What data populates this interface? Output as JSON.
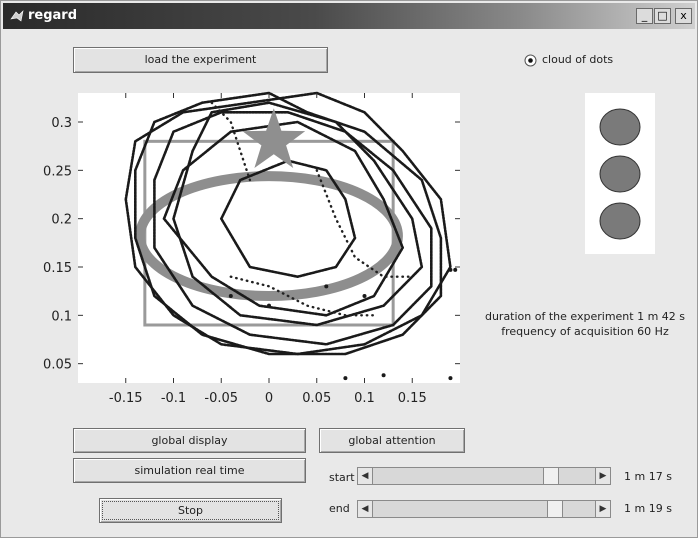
{
  "window": {
    "title": "regard",
    "controls": [
      "_",
      "□",
      "x"
    ]
  },
  "buttons": {
    "load": "load the experiment",
    "global_display": "global display",
    "simulation": "simulation real time",
    "stop": "Stop",
    "global_attention": "global attention"
  },
  "radio": {
    "label": "cloud of dots",
    "selected": true
  },
  "info": {
    "duration": "duration of the experiment 1 m 42 s",
    "frequency": "frequency of acquisition 60 Hz"
  },
  "sliders": {
    "start": {
      "label": "start",
      "value_text": "1 m 17 s",
      "position": 0.82
    },
    "end": {
      "label": "end",
      "value_text": "1 m 19 s",
      "position": 0.84
    }
  },
  "chart_data": {
    "type": "scatter",
    "title": "",
    "xlabel": "",
    "ylabel": "",
    "xlim": [
      -0.2,
      0.2
    ],
    "ylim": [
      0.03,
      0.33
    ],
    "xticks": [
      "-0.15",
      "-0.1",
      "-0.05",
      "0",
      "0.05",
      "0.1",
      "0.15"
    ],
    "xtick_values": [
      -0.15,
      -0.1,
      -0.05,
      0,
      0.05,
      0.1,
      0.15
    ],
    "yticks": [
      "0.05",
      "0.1",
      "0.15",
      "0.2",
      "0.25",
      "0.3"
    ],
    "ytick_values": [
      0.05,
      0.1,
      0.15,
      0.2,
      0.25,
      0.3
    ],
    "rectangle": {
      "x0": -0.13,
      "x1": 0.13,
      "y0": 0.09,
      "y1": 0.28
    },
    "ellipse": {
      "cx": 0.0,
      "cy": 0.182,
      "rx": 0.135,
      "ry": 0.062
    },
    "star": {
      "x": 0.005,
      "y": 0.28
    },
    "trajectories": [
      {
        "name": "",
        "points": [
          [
            -0.15,
            0.22
          ],
          [
            -0.14,
            0.28
          ],
          [
            -0.09,
            0.31
          ],
          [
            -0.02,
            0.32
          ],
          [
            0.05,
            0.33
          ],
          [
            0.1,
            0.31
          ],
          [
            0.14,
            0.27
          ],
          [
            0.18,
            0.22
          ],
          [
            0.19,
            0.15
          ],
          [
            0.16,
            0.1
          ],
          [
            0.1,
            0.07
          ],
          [
            0.03,
            0.06
          ],
          [
            -0.05,
            0.07
          ],
          [
            -0.1,
            0.1
          ],
          [
            -0.14,
            0.15
          ],
          [
            -0.15,
            0.22
          ]
        ]
      },
      {
        "name": "",
        "points": [
          [
            -0.12,
            0.24
          ],
          [
            -0.1,
            0.29
          ],
          [
            -0.05,
            0.31
          ],
          [
            0.02,
            0.31
          ],
          [
            0.08,
            0.29
          ],
          [
            0.13,
            0.25
          ],
          [
            0.17,
            0.19
          ],
          [
            0.17,
            0.13
          ],
          [
            0.13,
            0.09
          ],
          [
            0.06,
            0.07
          ],
          [
            -0.02,
            0.08
          ],
          [
            -0.08,
            0.11
          ],
          [
            -0.12,
            0.17
          ],
          [
            -0.12,
            0.24
          ]
        ]
      },
      {
        "name": "",
        "points": [
          [
            -0.08,
            0.27
          ],
          [
            -0.06,
            0.31
          ],
          [
            0.0,
            0.32
          ],
          [
            0.07,
            0.3
          ],
          [
            0.11,
            0.26
          ],
          [
            0.15,
            0.2
          ],
          [
            0.16,
            0.15
          ],
          [
            0.12,
            0.11
          ],
          [
            0.05,
            0.09
          ],
          [
            -0.03,
            0.1
          ],
          [
            -0.08,
            0.14
          ],
          [
            -0.1,
            0.2
          ],
          [
            -0.08,
            0.27
          ]
        ]
      },
      {
        "name": "",
        "points": [
          [
            -0.11,
            0.2
          ],
          [
            -0.09,
            0.25
          ],
          [
            -0.04,
            0.29
          ],
          [
            0.03,
            0.3
          ],
          [
            0.09,
            0.27
          ],
          [
            0.12,
            0.22
          ],
          [
            0.14,
            0.17
          ],
          [
            0.11,
            0.12
          ],
          [
            0.06,
            0.1
          ],
          [
            -0.01,
            0.11
          ],
          [
            -0.06,
            0.14
          ],
          [
            -0.11,
            0.2
          ]
        ]
      },
      {
        "name": "",
        "points": [
          [
            -0.14,
            0.25
          ],
          [
            -0.12,
            0.3
          ],
          [
            -0.07,
            0.32
          ],
          [
            0.0,
            0.33
          ],
          [
            0.04,
            0.31
          ],
          [
            0.1,
            0.29
          ],
          [
            0.16,
            0.24
          ],
          [
            0.18,
            0.18
          ],
          [
            0.18,
            0.12
          ],
          [
            0.14,
            0.08
          ],
          [
            0.08,
            0.06
          ],
          [
            0.0,
            0.06
          ],
          [
            -0.07,
            0.08
          ],
          [
            -0.12,
            0.12
          ],
          [
            -0.14,
            0.18
          ],
          [
            -0.14,
            0.25
          ]
        ]
      },
      {
        "name": "",
        "points": [
          [
            -0.05,
            0.2
          ],
          [
            -0.03,
            0.24
          ],
          [
            0.02,
            0.26
          ],
          [
            0.06,
            0.25
          ],
          [
            0.08,
            0.22
          ],
          [
            0.09,
            0.18
          ],
          [
            0.07,
            0.15
          ],
          [
            0.03,
            0.14
          ],
          [
            -0.02,
            0.15
          ],
          [
            -0.05,
            0.2
          ]
        ]
      }
    ],
    "dotted_lines": [
      {
        "name": "",
        "points": [
          [
            0.05,
            0.25
          ],
          [
            0.07,
            0.2
          ],
          [
            0.09,
            0.16
          ],
          [
            0.12,
            0.14
          ],
          [
            0.15,
            0.14
          ]
        ]
      },
      {
        "name": "",
        "points": [
          [
            -0.04,
            0.14
          ],
          [
            0.0,
            0.13
          ],
          [
            0.04,
            0.11
          ],
          [
            0.08,
            0.1
          ],
          [
            0.11,
            0.1
          ]
        ]
      },
      {
        "name": "",
        "points": [
          [
            -0.06,
            0.32
          ],
          [
            -0.04,
            0.3
          ],
          [
            -0.03,
            0.27
          ],
          [
            -0.02,
            0.24
          ]
        ]
      }
    ],
    "extra_points": [
      [
        0.19,
        0.147
      ],
      [
        0.195,
        0.147
      ],
      [
        0.08,
        0.035
      ],
      [
        0.12,
        0.038
      ],
      [
        0.19,
        0.035
      ],
      [
        -0.04,
        0.12
      ],
      [
        0.0,
        0.11
      ],
      [
        0.06,
        0.13
      ],
      [
        0.1,
        0.12
      ]
    ]
  },
  "lights": {
    "fill": "#7a7a7a",
    "count": 3
  }
}
